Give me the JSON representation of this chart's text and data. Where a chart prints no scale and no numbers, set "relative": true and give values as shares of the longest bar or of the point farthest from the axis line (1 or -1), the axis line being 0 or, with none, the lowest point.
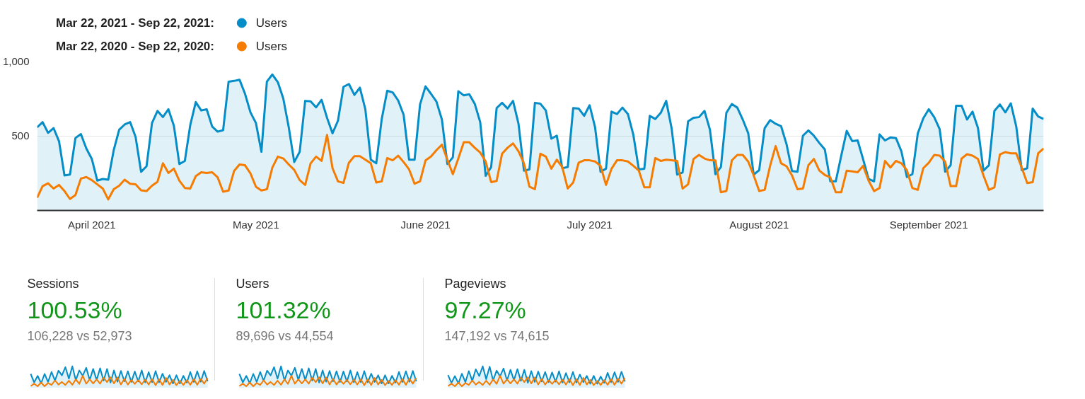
{
  "chart_data": [
    {
      "type": "line",
      "legend": "top left",
      "grid": "y",
      "annotations": [
        "Mar 22, 2021 - Sep 22, 2021:",
        "Mar 22, 2020 - Sep 22, 2020:"
      ],
      "x": [
        "2021-03-22",
        "2021-03-23",
        "2021-03-24",
        "2021-03-25",
        "2021-03-26",
        "2021-03-27",
        "2021-03-28",
        "2021-03-29",
        "2021-03-30",
        "2021-03-31",
        "2021-04-01",
        "2021-04-02",
        "2021-04-03",
        "2021-04-04",
        "2021-04-05",
        "2021-04-06",
        "2021-04-07",
        "2021-04-08",
        "2021-04-09",
        "2021-04-10",
        "2021-04-11",
        "2021-04-12",
        "2021-04-13",
        "2021-04-14",
        "2021-04-15",
        "2021-04-16",
        "2021-04-17",
        "2021-04-18",
        "2021-04-19",
        "2021-04-20",
        "2021-04-21",
        "2021-04-22",
        "2021-04-23",
        "2021-04-24",
        "2021-04-25",
        "2021-04-26",
        "2021-04-27",
        "2021-04-28",
        "2021-04-29",
        "2021-04-30",
        "2021-05-01",
        "2021-05-02",
        "2021-05-03",
        "2021-05-04",
        "2021-05-05",
        "2021-05-06",
        "2021-05-07",
        "2021-05-08",
        "2021-05-09",
        "2021-05-10",
        "2021-05-11",
        "2021-05-12",
        "2021-05-13",
        "2021-05-14",
        "2021-05-15",
        "2021-05-16",
        "2021-05-17",
        "2021-05-18",
        "2021-05-19",
        "2021-05-20",
        "2021-05-21",
        "2021-05-22",
        "2021-05-23",
        "2021-05-24",
        "2021-05-25",
        "2021-05-26",
        "2021-05-27",
        "2021-05-28",
        "2021-05-29",
        "2021-05-30",
        "2021-05-31",
        "2021-06-01",
        "2021-06-02",
        "2021-06-03",
        "2021-06-04",
        "2021-06-05",
        "2021-06-06",
        "2021-06-07",
        "2021-06-08",
        "2021-06-09",
        "2021-06-10",
        "2021-06-11",
        "2021-06-12",
        "2021-06-13",
        "2021-06-14",
        "2021-06-15",
        "2021-06-16",
        "2021-06-17",
        "2021-06-18",
        "2021-06-19",
        "2021-06-20",
        "2021-06-21",
        "2021-06-22",
        "2021-06-23",
        "2021-06-24",
        "2021-06-25",
        "2021-06-26",
        "2021-06-27",
        "2021-06-28",
        "2021-06-29",
        "2021-06-30",
        "2021-07-01",
        "2021-07-02",
        "2021-07-03",
        "2021-07-04",
        "2021-07-05",
        "2021-07-06",
        "2021-07-07",
        "2021-07-08",
        "2021-07-09",
        "2021-07-10",
        "2021-07-11",
        "2021-07-12",
        "2021-07-13",
        "2021-07-14",
        "2021-07-15",
        "2021-07-16",
        "2021-07-17",
        "2021-07-18",
        "2021-07-19",
        "2021-07-20",
        "2021-07-21",
        "2021-07-22",
        "2021-07-23",
        "2021-07-24",
        "2021-07-25",
        "2021-07-26",
        "2021-07-27",
        "2021-07-28",
        "2021-07-29",
        "2021-07-30",
        "2021-07-31",
        "2021-08-01",
        "2021-08-02",
        "2021-08-03",
        "2021-08-04",
        "2021-08-05",
        "2021-08-06",
        "2021-08-07",
        "2021-08-08",
        "2021-08-09",
        "2021-08-10",
        "2021-08-11",
        "2021-08-12",
        "2021-08-13",
        "2021-08-14",
        "2021-08-15",
        "2021-08-16",
        "2021-08-17",
        "2021-08-18",
        "2021-08-19",
        "2021-08-20",
        "2021-08-21",
        "2021-08-22",
        "2021-08-23",
        "2021-08-24",
        "2021-08-25",
        "2021-08-26",
        "2021-08-27",
        "2021-08-28",
        "2021-08-29",
        "2021-08-30",
        "2021-08-31",
        "2021-09-01",
        "2021-09-02",
        "2021-09-03",
        "2021-09-04",
        "2021-09-05",
        "2021-09-06",
        "2021-09-07",
        "2021-09-08",
        "2021-09-09",
        "2021-09-10",
        "2021-09-11",
        "2021-09-12",
        "2021-09-13",
        "2021-09-14",
        "2021-09-15",
        "2021-09-16",
        "2021-09-17",
        "2021-09-18",
        "2021-09-19",
        "2021-09-20",
        "2021-09-21",
        "2021-09-22"
      ],
      "xlim": [
        "2021-03-22",
        "2021-09-22"
      ],
      "xticks": [
        {
          "value": "2021-04-01",
          "label": "April 2021"
        },
        {
          "value": "2021-05-01",
          "label": "May 2021"
        },
        {
          "value": "2021-06-01",
          "label": "June 2021"
        },
        {
          "value": "2021-07-01",
          "label": "July 2021"
        },
        {
          "value": "2021-08-01",
          "label": "August 2021"
        },
        {
          "value": "2021-09-01",
          "label": "September 2021"
        }
      ],
      "ylim": [
        0,
        1000
      ],
      "yticks": [
        500,
        {
          "value": 1000,
          "label": "1,000"
        }
      ],
      "series": [
        {
          "name": "Users",
          "type": "area",
          "color": "#058dc7",
          "values": [
            557,
            592,
            520,
            552,
            464,
            235,
            240,
            485,
            512,
            415,
            345,
            200,
            211,
            206,
            404,
            541,
            576,
            592,
            493,
            259,
            296,
            586,
            667,
            626,
            678,
            568,
            311,
            332,
            573,
            726,
            670,
            678,
            562,
            528,
            538,
            863,
            868,
            876,
            782,
            657,
            586,
            393,
            863,
            911,
            860,
            750,
            557,
            324,
            393,
            734,
            731,
            691,
            741,
            621,
            517,
            602,
            828,
            847,
            774,
            823,
            678,
            340,
            316,
            613,
            802,
            791,
            737,
            641,
            340,
            340,
            710,
            831,
            782,
            729,
            609,
            311,
            356,
            799,
            771,
            778,
            715,
            592,
            232,
            291,
            686,
            721,
            683,
            734,
            581,
            267,
            275,
            721,
            715,
            670,
            481,
            501,
            283,
            291,
            686,
            683,
            634,
            705,
            557,
            259,
            280,
            662,
            646,
            689,
            646,
            506,
            275,
            280,
            634,
            613,
            654,
            734,
            549,
            240,
            254,
            597,
            621,
            625,
            667,
            541,
            243,
            291,
            654,
            713,
            689,
            609,
            517,
            240,
            270,
            552,
            605,
            581,
            565,
            444,
            264,
            259,
            501,
            536,
            501,
            452,
            409,
            195,
            195,
            367,
            533,
            465,
            469,
            343,
            211,
            195,
            509,
            469,
            489,
            485,
            396,
            224,
            243,
            517,
            617,
            678,
            625,
            544,
            259,
            303,
            702,
            702,
            609,
            662,
            552,
            267,
            303,
            667,
            710,
            657,
            718,
            562,
            270,
            283,
            683,
            630,
            613
          ]
        },
        {
          "name": "Users",
          "type": "line",
          "color": "#f57c00",
          "values": [
            85,
            163,
            182,
            147,
            171,
            130,
            77,
            103,
            214,
            224,
            203,
            175,
            147,
            74,
            142,
            166,
            206,
            179,
            175,
            135,
            130,
            166,
            192,
            316,
            251,
            280,
            200,
            151,
            147,
            230,
            256,
            251,
            256,
            222,
            126,
            134,
            264,
            308,
            303,
            248,
            159,
            134,
            142,
            287,
            361,
            348,
            308,
            272,
            203,
            171,
            316,
            361,
            332,
            506,
            283,
            195,
            184,
            320,
            364,
            364,
            340,
            316,
            187,
            195,
            351,
            336,
            367,
            324,
            275,
            179,
            195,
            335,
            361,
            404,
            441,
            340,
            243,
            348,
            457,
            457,
            420,
            388,
            328,
            190,
            198,
            380,
            420,
            449,
            396,
            316,
            159,
            143,
            380,
            361,
            280,
            340,
            291,
            147,
            187,
            320,
            336,
            336,
            328,
            299,
            171,
            279,
            336,
            336,
            328,
            299,
            267,
            155,
            155,
            351,
            332,
            340,
            336,
            332,
            147,
            175,
            345,
            372,
            348,
            336,
            335,
            122,
            130,
            335,
            372,
            372,
            327,
            235,
            130,
            138,
            299,
            431,
            316,
            296,
            235,
            142,
            147,
            303,
            345,
            267,
            238,
            222,
            122,
            122,
            267,
            262,
            256,
            299,
            200,
            130,
            150,
            332,
            288,
            332,
            316,
            270,
            150,
            138,
            283,
            319,
            372,
            367,
            327,
            163,
            163,
            348,
            377,
            367,
            345,
            235,
            138,
            155,
            375,
            391,
            383,
            383,
            287,
            184,
            190,
            383,
            415
          ]
        }
      ]
    },
    {
      "type": "line",
      "relative": true,
      "title": "Sessions",
      "annotations": [
        "100.53%",
        "106,228 vs 52,973"
      ],
      "categories": [
        null,
        null,
        null,
        null,
        null,
        null,
        null,
        null,
        null,
        null,
        null,
        null,
        null,
        null,
        null,
        null,
        null,
        null,
        null,
        null,
        null,
        null,
        null,
        null,
        null,
        null,
        null,
        null,
        null,
        null,
        null,
        null,
        null,
        null,
        null,
        null,
        null,
        null,
        null,
        null,
        null,
        null,
        null,
        null,
        null,
        null,
        null,
        null,
        null,
        null,
        null,
        null
      ],
      "series": [
        {
          "type": "area",
          "color": "#058dc7",
          "values": [
            0.65,
            0.26,
            0.56,
            0.22,
            0.65,
            0.28,
            0.74,
            0.34,
            0.8,
            0.58,
            0.96,
            0.43,
            1,
            0.36,
            0.81,
            0.57,
            0.93,
            0.37,
            0.88,
            0.37,
            0.91,
            0.34,
            0.88,
            0.25,
            0.81,
            0.29,
            0.79,
            0.31,
            0.77,
            0.28,
            0.76,
            0.3,
            0.81,
            0.26,
            0.73,
            0.27,
            0.78,
            0.26,
            0.66,
            0.28,
            0.59,
            0.21,
            0.59,
            0.21,
            0.56,
            0.25,
            0.74,
            0.28,
            0.77,
            0.29,
            0.79,
            0.31
          ]
        },
        {
          "type": "line",
          "color": "#f57c00",
          "values": [
            0.09,
            0.2,
            0.08,
            0.25,
            0.08,
            0.23,
            0.14,
            0.35,
            0.16,
            0.28,
            0.14,
            0.34,
            0.15,
            0.4,
            0.19,
            0.56,
            0.2,
            0.4,
            0.21,
            0.4,
            0.2,
            0.48,
            0.27,
            0.5,
            0.21,
            0.49,
            0.16,
            0.42,
            0.16,
            0.37,
            0.19,
            0.37,
            0.17,
            0.39,
            0.16,
            0.41,
            0.13,
            0.41,
            0.14,
            0.47,
            0.16,
            0.38,
            0.13,
            0.33,
            0.14,
            0.36,
            0.15,
            0.41,
            0.15,
            0.43,
            0.2,
            0.46
          ]
        }
      ]
    },
    {
      "type": "line",
      "relative": true,
      "title": "Users",
      "annotations": [
        "101.32%",
        "89,696 vs 44,554"
      ],
      "categories": [
        null,
        null,
        null,
        null,
        null,
        null,
        null,
        null,
        null,
        null,
        null,
        null,
        null,
        null,
        null,
        null,
        null,
        null,
        null,
        null,
        null,
        null,
        null,
        null,
        null,
        null,
        null,
        null,
        null,
        null,
        null,
        null,
        null,
        null,
        null,
        null,
        null,
        null,
        null,
        null,
        null,
        null,
        null,
        null,
        null,
        null,
        null,
        null,
        null,
        null,
        null,
        null
      ],
      "series": [
        {
          "type": "area",
          "color": "#058dc7",
          "values": [
            0.65,
            0.26,
            0.56,
            0.22,
            0.65,
            0.28,
            0.74,
            0.34,
            0.8,
            0.58,
            0.96,
            0.43,
            1,
            0.36,
            0.81,
            0.57,
            0.93,
            0.37,
            0.88,
            0.37,
            0.91,
            0.34,
            0.88,
            0.25,
            0.81,
            0.29,
            0.79,
            0.31,
            0.77,
            0.28,
            0.76,
            0.3,
            0.81,
            0.26,
            0.73,
            0.27,
            0.78,
            0.26,
            0.66,
            0.28,
            0.59,
            0.21,
            0.59,
            0.21,
            0.56,
            0.25,
            0.74,
            0.28,
            0.77,
            0.29,
            0.79,
            0.31
          ]
        },
        {
          "type": "line",
          "color": "#f57c00",
          "values": [
            0.09,
            0.2,
            0.08,
            0.25,
            0.08,
            0.23,
            0.14,
            0.35,
            0.16,
            0.28,
            0.14,
            0.34,
            0.15,
            0.4,
            0.19,
            0.56,
            0.2,
            0.4,
            0.21,
            0.4,
            0.2,
            0.48,
            0.27,
            0.5,
            0.21,
            0.49,
            0.16,
            0.42,
            0.16,
            0.37,
            0.19,
            0.37,
            0.17,
            0.39,
            0.16,
            0.41,
            0.13,
            0.41,
            0.14,
            0.47,
            0.16,
            0.38,
            0.13,
            0.33,
            0.14,
            0.36,
            0.15,
            0.41,
            0.15,
            0.43,
            0.2,
            0.46
          ]
        }
      ]
    },
    {
      "type": "line",
      "relative": true,
      "title": "Pageviews",
      "annotations": [
        "97.27%",
        "147,192 vs 74,615"
      ],
      "categories": [
        null,
        null,
        null,
        null,
        null,
        null,
        null,
        null,
        null,
        null,
        null,
        null,
        null,
        null,
        null,
        null,
        null,
        null,
        null,
        null,
        null,
        null,
        null,
        null,
        null,
        null,
        null,
        null,
        null,
        null,
        null,
        null,
        null,
        null,
        null,
        null,
        null,
        null,
        null,
        null,
        null,
        null,
        null,
        null,
        null,
        null,
        null,
        null,
        null,
        null,
        null,
        null
      ],
      "series": [
        {
          "type": "area",
          "color": "#058dc7",
          "values": [
            0.6,
            0.24,
            0.55,
            0.21,
            0.66,
            0.27,
            0.78,
            0.33,
            0.86,
            0.55,
            1,
            0.41,
            0.98,
            0.35,
            0.8,
            0.54,
            0.9,
            0.35,
            0.84,
            0.36,
            0.87,
            0.33,
            0.84,
            0.24,
            0.78,
            0.28,
            0.76,
            0.3,
            0.74,
            0.27,
            0.72,
            0.29,
            0.77,
            0.25,
            0.69,
            0.26,
            0.74,
            0.25,
            0.62,
            0.27,
            0.56,
            0.2,
            0.56,
            0.2,
            0.53,
            0.24,
            0.7,
            0.27,
            0.73,
            0.28,
            0.75,
            0.3
          ]
        },
        {
          "type": "line",
          "color": "#f57c00",
          "values": [
            0.09,
            0.2,
            0.08,
            0.25,
            0.08,
            0.23,
            0.14,
            0.35,
            0.16,
            0.28,
            0.14,
            0.34,
            0.15,
            0.4,
            0.19,
            0.56,
            0.2,
            0.4,
            0.21,
            0.4,
            0.2,
            0.48,
            0.27,
            0.5,
            0.21,
            0.49,
            0.16,
            0.42,
            0.16,
            0.37,
            0.19,
            0.37,
            0.17,
            0.39,
            0.16,
            0.41,
            0.13,
            0.41,
            0.14,
            0.47,
            0.16,
            0.38,
            0.13,
            0.33,
            0.14,
            0.36,
            0.15,
            0.41,
            0.15,
            0.43,
            0.2,
            0.46
          ]
        }
      ]
    }
  ]
}
